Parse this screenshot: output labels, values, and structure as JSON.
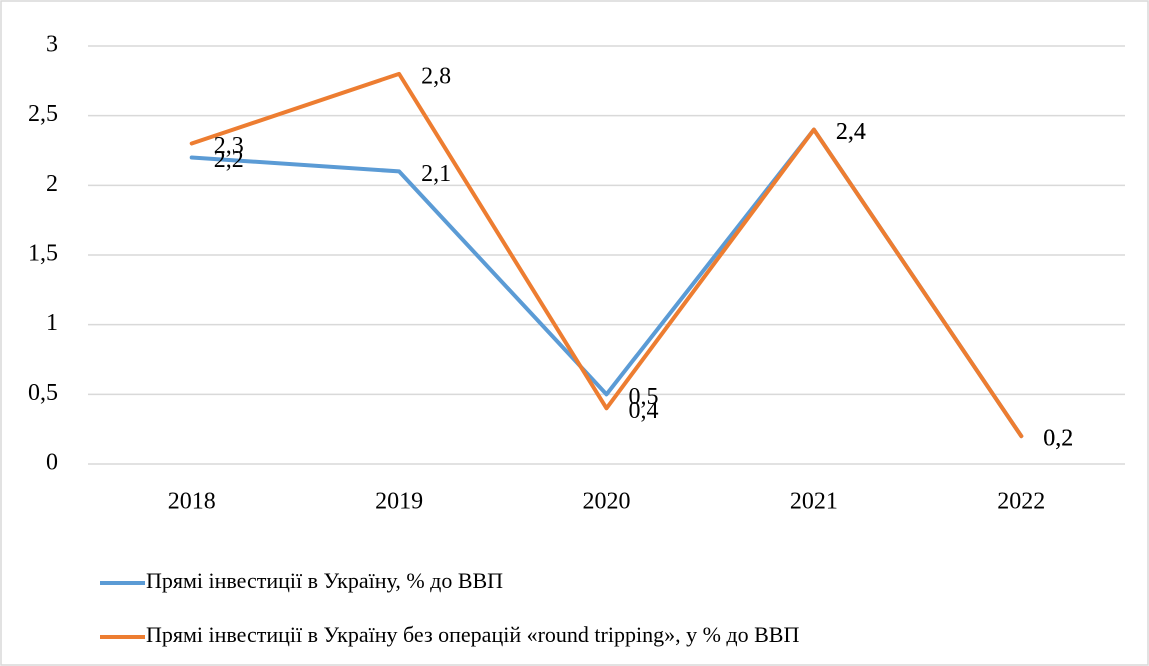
{
  "chart_data": {
    "type": "line",
    "categories": [
      "2018",
      "2019",
      "2020",
      "2021",
      "2022"
    ],
    "series": [
      {
        "name": "Прямі інвестиції в Україну, % до ВВП",
        "color": "#5b9bd5",
        "values": [
          2.2,
          2.1,
          0.5,
          2.4,
          0.2
        ],
        "value_labels": [
          "2,2",
          "2,1",
          "0,5",
          "2,4",
          "0,2"
        ]
      },
      {
        "name": "Прямі інвестиції в Україну без операцій «round tripping», у % до ВВП",
        "color": "#ed7d31",
        "values": [
          2.3,
          2.8,
          0.4,
          2.4,
          0.2
        ],
        "value_labels": [
          "2,3",
          "2,8",
          "0,4",
          "2,4",
          "0,2"
        ]
      }
    ],
    "ylim": [
      0,
      3
    ],
    "yticks": [
      0,
      {
        "value": 0.5,
        "label": "0,5"
      },
      1,
      {
        "value": 1.5,
        "label": "1,5"
      },
      2,
      {
        "value": 2.5,
        "label": "2,5"
      },
      3
    ],
    "grid": true,
    "legend": "bottom"
  }
}
